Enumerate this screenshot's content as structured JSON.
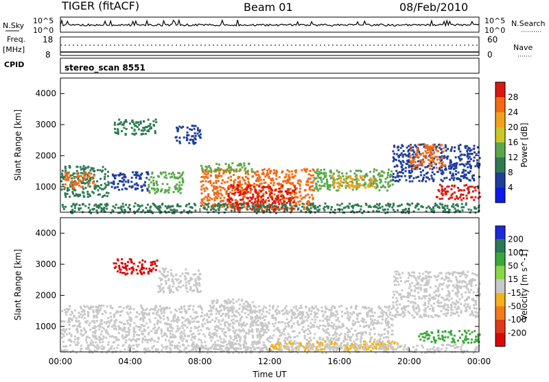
{
  "header": {
    "radar": "TIGER (fitACF)",
    "beam": "Beam 01",
    "date": "08/Feb/2010"
  },
  "side_labels": {
    "nsky": "N.Sky",
    "nsearch": "N.Search",
    "freq": "Freq.",
    "freq_unit": "[MHz]",
    "nave": "Nave",
    "cpid": "CPID"
  },
  "noise_panel": {
    "left_ticks": [
      "10^5",
      "10^0"
    ],
    "right_ticks": [
      "10^5",
      "10^0"
    ]
  },
  "freq_panel": {
    "left_ticks": [
      "18",
      "8"
    ],
    "right_ticks": [
      "60",
      "0"
    ]
  },
  "cpid_panel": {
    "label": "stereo_scan 8551"
  },
  "time_axis": {
    "label": "Time UT",
    "ticks": [
      "00:00",
      "04:00",
      "08:00",
      "12:00",
      "16:00",
      "20:00",
      "00:00"
    ]
  },
  "chart_data": [
    {
      "type": "heatmap",
      "name": "power",
      "ylabel": "Slant Range [km]",
      "yticks": [
        "1000",
        "2000",
        "3000",
        "4000"
      ],
      "ylim": [
        180,
        4500
      ],
      "xlim_hours": [
        0,
        24
      ],
      "colorbar": {
        "label": "Power [dB]",
        "ticks": [
          "4",
          "8",
          "12",
          "16",
          "20",
          "24",
          "28"
        ],
        "colors": [
          "#0a1ae8",
          "#1f3d9a",
          "#2f7a55",
          "#5aa84a",
          "#c9c828",
          "#f2a21a",
          "#f26a14",
          "#d81a0f"
        ]
      },
      "regions": [
        {
          "t0": 0.0,
          "t1": 2.8,
          "r0": 700,
          "r1": 1700,
          "color": "#2f7a55"
        },
        {
          "t0": 0.2,
          "t1": 2.0,
          "r0": 1000,
          "r1": 1500,
          "color": "#f26a14"
        },
        {
          "t0": 2.8,
          "t1": 5.0,
          "r0": 900,
          "r1": 1500,
          "color": "#1f3d9a"
        },
        {
          "t0": 3.0,
          "t1": 5.5,
          "r0": 2700,
          "r1": 3200,
          "color": "#2f7a55"
        },
        {
          "t0": 5.0,
          "t1": 7.0,
          "r0": 800,
          "r1": 1500,
          "color": "#5aa84a"
        },
        {
          "t0": 6.5,
          "t1": 8.0,
          "r0": 2400,
          "r1": 3000,
          "color": "#1f3d9a"
        },
        {
          "t0": 8.0,
          "t1": 14.5,
          "r0": 300,
          "r1": 1600,
          "color": "#f26a14"
        },
        {
          "t0": 9.5,
          "t1": 13.5,
          "r0": 250,
          "r1": 1100,
          "color": "#d81a0f"
        },
        {
          "t0": 8.0,
          "t1": 11.0,
          "r0": 1500,
          "r1": 1800,
          "color": "#5aa84a"
        },
        {
          "t0": 14.5,
          "t1": 19.0,
          "r0": 900,
          "r1": 1600,
          "color": "#5aa84a"
        },
        {
          "t0": 15.5,
          "t1": 18.0,
          "r0": 1000,
          "r1": 1400,
          "color": "#f2a21a"
        },
        {
          "t0": 19.0,
          "t1": 24.0,
          "r0": 1200,
          "r1": 2400,
          "color": "#1f3d9a"
        },
        {
          "t0": 20.0,
          "t1": 22.0,
          "r0": 1600,
          "r1": 2400,
          "color": "#f26a14"
        },
        {
          "t0": 21.5,
          "t1": 24.0,
          "r0": 600,
          "r1": 1100,
          "color": "#d81a0f"
        },
        {
          "t0": 0.0,
          "t1": 24.0,
          "r0": 180,
          "r1": 500,
          "color": "#2f7a55"
        }
      ]
    },
    {
      "type": "heatmap",
      "name": "velocity",
      "ylabel": "Slant Range [km]",
      "yticks": [
        "1000",
        "2000",
        "3000",
        "4000"
      ],
      "ylim": [
        180,
        4500
      ],
      "xlim_hours": [
        0,
        24
      ],
      "colorbar": {
        "label": "Velocity [m s^-1]",
        "ticks": [
          "200",
          "100",
          "50",
          "15",
          "-15",
          "-50",
          "-100",
          "-200"
        ],
        "colors": [
          "#1a2ad8",
          "#2a7a55",
          "#3aa83a",
          "#8ad84a",
          "#c8c8c8",
          "#f2b21a",
          "#f27a1a",
          "#e03a1a",
          "#d80a0a"
        ]
      },
      "regions": [
        {
          "t0": 0.0,
          "t1": 7.5,
          "r0": 500,
          "r1": 1700,
          "color": "#c8c8c8"
        },
        {
          "t0": 3.0,
          "t1": 5.5,
          "r0": 2700,
          "r1": 3200,
          "color": "#d80a0a"
        },
        {
          "t0": 5.5,
          "t1": 8.0,
          "r0": 2100,
          "r1": 2900,
          "color": "#c8c8c8"
        },
        {
          "t0": 7.5,
          "t1": 19.0,
          "r0": 300,
          "r1": 1700,
          "color": "#c8c8c8"
        },
        {
          "t0": 12.0,
          "t1": 19.5,
          "r0": 250,
          "r1": 550,
          "color": "#f2b21a"
        },
        {
          "t0": 8.5,
          "t1": 11.0,
          "r0": 1500,
          "r1": 1900,
          "color": "#c8c8c8"
        },
        {
          "t0": 19.0,
          "t1": 24.0,
          "r0": 1300,
          "r1": 2800,
          "color": "#c8c8c8"
        },
        {
          "t0": 20.5,
          "t1": 24.0,
          "r0": 500,
          "r1": 900,
          "color": "#3aa83a"
        },
        {
          "t0": 0.0,
          "t1": 24.0,
          "r0": 180,
          "r1": 450,
          "color": "#c8c8c8"
        }
      ]
    }
  ]
}
